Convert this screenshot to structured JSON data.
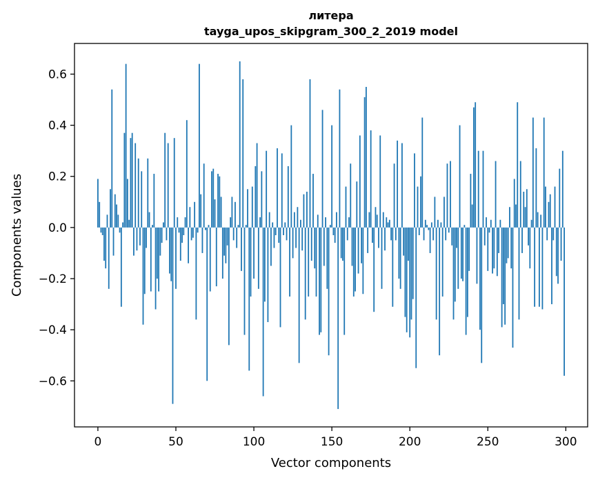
{
  "chart_data": {
    "type": "bar",
    "title": "литера",
    "subtitle": "tayga_upos_skipgram_300_2_2019 model",
    "xlabel": "Vector components",
    "ylabel": "Components values",
    "xlim": [
      -15,
      314
    ],
    "ylim": [
      -0.78,
      0.72
    ],
    "xticks": [
      0,
      50,
      100,
      150,
      200,
      250,
      300
    ],
    "yticks": [
      -0.6,
      -0.4,
      -0.2,
      0.0,
      0.2,
      0.4,
      0.6
    ],
    "ytick_labels": [
      "−0.6",
      "−0.4",
      "−0.2",
      "0.0",
      "0.2",
      "0.4",
      "0.6"
    ],
    "bar_color": "#1f77b4",
    "grid": false,
    "x": [
      0,
      1,
      2,
      3,
      4,
      5,
      6,
      7,
      8,
      9,
      10,
      11,
      12,
      13,
      14,
      15,
      16,
      17,
      18,
      19,
      20,
      21,
      22,
      23,
      24,
      25,
      26,
      27,
      28,
      29,
      30,
      31,
      32,
      33,
      34,
      35,
      36,
      37,
      38,
      39,
      40,
      41,
      42,
      43,
      44,
      45,
      46,
      47,
      48,
      49,
      50,
      51,
      52,
      53,
      54,
      55,
      56,
      57,
      58,
      59,
      60,
      61,
      62,
      63,
      64,
      65,
      66,
      67,
      68,
      69,
      70,
      71,
      72,
      73,
      74,
      75,
      76,
      77,
      78,
      79,
      80,
      81,
      82,
      83,
      84,
      85,
      86,
      87,
      88,
      89,
      90,
      91,
      92,
      93,
      94,
      95,
      96,
      97,
      98,
      99,
      100,
      101,
      102,
      103,
      104,
      105,
      106,
      107,
      108,
      109,
      110,
      111,
      112,
      113,
      114,
      115,
      116,
      117,
      118,
      119,
      120,
      121,
      122,
      123,
      124,
      125,
      126,
      127,
      128,
      129,
      130,
      131,
      132,
      133,
      134,
      135,
      136,
      137,
      138,
      139,
      140,
      141,
      142,
      143,
      144,
      145,
      146,
      147,
      148,
      149,
      150,
      151,
      152,
      153,
      154,
      155,
      156,
      157,
      158,
      159,
      160,
      161,
      162,
      163,
      164,
      165,
      166,
      167,
      168,
      169,
      170,
      171,
      172,
      173,
      174,
      175,
      176,
      177,
      178,
      179,
      180,
      181,
      182,
      183,
      184,
      185,
      186,
      187,
      188,
      189,
      190,
      191,
      192,
      193,
      194,
      195,
      196,
      197,
      198,
      199,
      200,
      201,
      202,
      203,
      204,
      205,
      206,
      207,
      208,
      209,
      210,
      211,
      212,
      213,
      214,
      215,
      216,
      217,
      218,
      219,
      220,
      221,
      222,
      223,
      224,
      225,
      226,
      227,
      228,
      229,
      230,
      231,
      232,
      233,
      234,
      235,
      236,
      237,
      238,
      239,
      240,
      241,
      242,
      243,
      244,
      245,
      246,
      247,
      248,
      249,
      250,
      251,
      252,
      253,
      254,
      255,
      256,
      257,
      258,
      259,
      260,
      261,
      262,
      263,
      264,
      265,
      266,
      267,
      268,
      269,
      270,
      271,
      272,
      273,
      274,
      275,
      276,
      277,
      278,
      279,
      280,
      281,
      282,
      283,
      284,
      285,
      286,
      287,
      288,
      289,
      290,
      291,
      292,
      293,
      294,
      295,
      296,
      297,
      298,
      299
    ],
    "values": [
      0.19,
      0.1,
      -0.02,
      -0.03,
      -0.13,
      -0.16,
      0.05,
      -0.24,
      0.15,
      0.54,
      -0.11,
      0.13,
      0.09,
      0.05,
      -0.02,
      -0.31,
      0.02,
      0.37,
      0.64,
      0.19,
      0.03,
      0.35,
      0.37,
      -0.11,
      0.33,
      -0.09,
      0.27,
      -0.07,
      0.22,
      -0.38,
      -0.26,
      -0.08,
      0.27,
      0.06,
      -0.25,
      0.01,
      0.21,
      -0.32,
      -0.2,
      -0.25,
      -0.11,
      -0.06,
      0.02,
      0.37,
      -0.05,
      0.33,
      -0.18,
      -0.21,
      -0.69,
      0.35,
      -0.24,
      0.04,
      -0.02,
      -0.13,
      -0.06,
      -0.03,
      0.04,
      0.42,
      -0.14,
      0.08,
      -0.05,
      -0.04,
      0.1,
      -0.36,
      -0.02,
      0.64,
      0.13,
      -0.1,
      0.25,
      -0.01,
      -0.6,
      0.01,
      -0.25,
      0.22,
      0.23,
      0.11,
      -0.23,
      0.21,
      0.2,
      0.12,
      -0.2,
      -0.11,
      -0.14,
      -0.07,
      -0.46,
      0.04,
      0.12,
      -0.05,
      0.1,
      -0.08,
      0.01,
      0.65,
      -0.17,
      0.58,
      -0.42,
      0.01,
      0.15,
      -0.56,
      -0.27,
      0.16,
      -0.2,
      0.24,
      0.33,
      -0.24,
      0.04,
      0.22,
      -0.66,
      -0.29,
      0.3,
      -0.37,
      0.06,
      -0.15,
      0.02,
      -0.08,
      -0.03,
      0.31,
      -0.06,
      -0.39,
      0.29,
      -0.03,
      0.02,
      -0.05,
      0.24,
      -0.27,
      0.4,
      -0.12,
      0.06,
      -0.08,
      0.08,
      -0.53,
      0.03,
      -0.09,
      0.13,
      -0.36,
      0.14,
      -0.27,
      0.58,
      -0.13,
      0.21,
      -0.16,
      -0.27,
      0.05,
      -0.42,
      -0.41,
      0.46,
      -0.15,
      0.04,
      -0.24,
      -0.5,
      0.01,
      0.4,
      -0.03,
      -0.06,
      0.06,
      -0.71,
      0.54,
      -0.12,
      -0.13,
      -0.42,
      0.16,
      -0.05,
      0.04,
      0.25,
      -0.15,
      -0.27,
      -0.25,
      0.18,
      -0.18,
      0.36,
      -0.14,
      -0.26,
      0.51,
      0.55,
      -0.1,
      0.06,
      0.38,
      -0.06,
      -0.33,
      0.08,
      0.05,
      -0.08,
      0.36,
      -0.24,
      0.06,
      -0.09,
      0.04,
      0.02,
      0.03,
      -0.05,
      -0.31,
      0.25,
      -0.05,
      0.34,
      -0.2,
      -0.24,
      0.33,
      -0.11,
      -0.35,
      -0.41,
      -0.13,
      -0.43,
      -0.36,
      -0.28,
      0.29,
      -0.55,
      0.16,
      -0.03,
      0.2,
      0.43,
      -0.05,
      0.03,
      0.01,
      -0.01,
      -0.1,
      0.02,
      -0.05,
      0.12,
      -0.36,
      0.03,
      -0.5,
      0.02,
      -0.27,
      0.12,
      -0.05,
      0.25,
      -0.02,
      0.26,
      -0.07,
      -0.36,
      -0.29,
      -0.08,
      -0.24,
      0.4,
      -0.2,
      -0.21,
      0.01,
      -0.42,
      -0.35,
      -0.17,
      0.21,
      0.09,
      0.47,
      0.49,
      -0.22,
      0.3,
      -0.4,
      -0.53,
      0.3,
      -0.07,
      0.04,
      -0.17,
      -0.02,
      0.03,
      -0.18,
      -0.16,
      0.26,
      -0.19,
      -0.1,
      0.03,
      -0.39,
      -0.3,
      -0.38,
      -0.14,
      -0.12,
      0.08,
      -0.16,
      -0.47,
      0.19,
      0.09,
      0.49,
      -0.36,
      0.26,
      -0.1,
      0.14,
      0.08,
      0.15,
      -0.07,
      -0.16,
      0.03,
      0.43,
      -0.31,
      0.31,
      0.06,
      -0.31,
      0.05,
      -0.32,
      0.43,
      0.16,
      -0.05,
      0.1,
      0.13,
      -0.3,
      -0.05,
      0.16,
      -0.19,
      -0.22,
      0.23,
      -0.13,
      0.3,
      -0.58
    ]
  }
}
